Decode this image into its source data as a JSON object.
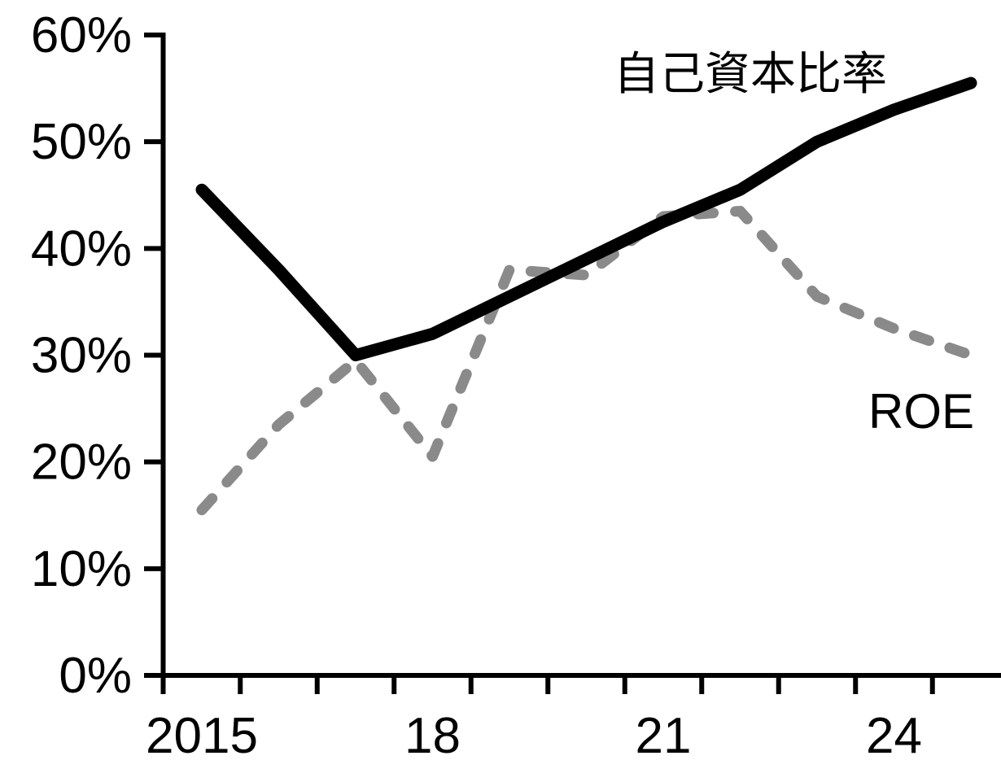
{
  "chart_data": {
    "type": "line",
    "title": "",
    "xlabel": "",
    "ylabel": "",
    "x": [
      2015,
      2016,
      2017,
      2018,
      2019,
      2020,
      2021,
      2022,
      2023,
      2024,
      2025
    ],
    "xlim": [
      2014.5,
      2025.5
    ],
    "ylim": [
      0,
      60
    ],
    "grid": false,
    "legend_position": "inline-annotation",
    "x_tick_labels": [
      {
        "year": 2015,
        "label": "2015"
      },
      {
        "year": 2018,
        "label": "18"
      },
      {
        "year": 2021,
        "label": "21"
      },
      {
        "year": 2024,
        "label": "24"
      }
    ],
    "y_ticks": [
      {
        "value": 60,
        "label": "60%"
      },
      {
        "value": 50,
        "label": "50%"
      },
      {
        "value": 40,
        "label": "40%"
      },
      {
        "value": 30,
        "label": "30%"
      },
      {
        "value": 20,
        "label": "20%"
      },
      {
        "value": 10,
        "label": "10%"
      },
      {
        "value": 0,
        "label": "0%"
      }
    ],
    "series": [
      {
        "name": "自己資本比率",
        "line_style": "solid",
        "color": "#000000",
        "values": [
          45.5,
          38,
          30,
          32,
          35.5,
          39,
          42.5,
          45.5,
          50,
          53,
          55.5
        ]
      },
      {
        "name": "ROE",
        "line_style": "dashed",
        "color": "#8a8a8a",
        "values": [
          15.5,
          23.5,
          29.5,
          20.5,
          38,
          37.5,
          43,
          43.5,
          35.5,
          32.5,
          30
        ]
      }
    ]
  }
}
